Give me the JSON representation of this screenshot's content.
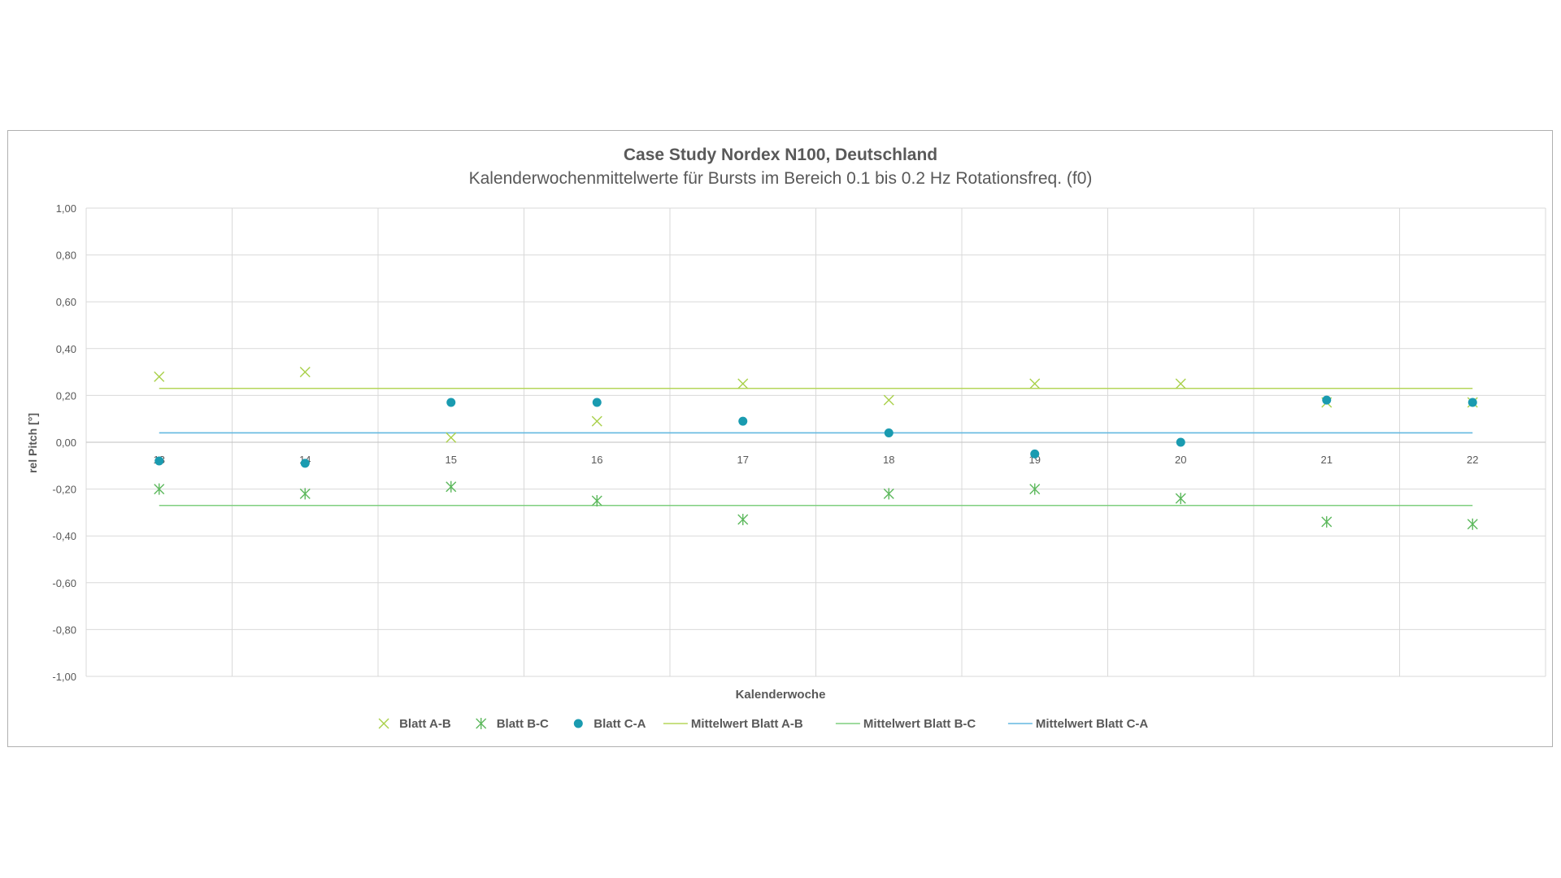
{
  "chart_data": {
    "type": "scatter",
    "title": "Case Study Nordex N100, Deutschland",
    "subtitle": "Kalenderwochenmittelwerte für Bursts im Bereich 0.1 bis 0.2 Hz Rotationsfreq. (f0)",
    "xlabel": "Kalenderwoche",
    "ylabel": "rel Pitch [°]",
    "x": [
      13,
      14,
      15,
      16,
      17,
      18,
      19,
      20,
      21,
      22
    ],
    "x_tick_labels": [
      "13",
      "14",
      "15",
      "16",
      "17",
      "18",
      "19",
      "20",
      "21",
      "22"
    ],
    "ylim": [
      -1.0,
      1.0
    ],
    "y_tick_labels": [
      "1,00",
      "0,80",
      "0,60",
      "0,40",
      "0,20",
      "0,00",
      "-0,20",
      "-0,40",
      "-0,60",
      "-0,80",
      "-1,00"
    ],
    "grid": true,
    "legend_position": "bottom",
    "series": [
      {
        "name": "Blatt A-B",
        "marker": "x",
        "color": "#a9d04a",
        "values": [
          0.28,
          0.3,
          0.02,
          0.09,
          0.25,
          0.18,
          0.25,
          0.25,
          0.17,
          0.17
        ]
      },
      {
        "name": "Blatt B-C",
        "marker": "star",
        "color": "#5cb85c",
        "values": [
          -0.2,
          -0.22,
          -0.19,
          -0.25,
          -0.33,
          -0.22,
          -0.2,
          -0.24,
          -0.34,
          -0.35
        ]
      },
      {
        "name": "Blatt C-A",
        "marker": "circle",
        "color": "#1a9bb0",
        "values": [
          -0.08,
          -0.09,
          0.17,
          0.17,
          0.09,
          0.04,
          -0.05,
          0.0,
          0.18,
          0.17
        ]
      },
      {
        "name": "Mittelwert Blatt A-B",
        "marker": "line",
        "color": "#b5d65a",
        "values": [
          0.23,
          0.23,
          0.23,
          0.23,
          0.23,
          0.23,
          0.23,
          0.23,
          0.23,
          0.23
        ]
      },
      {
        "name": "Mittelwert Blatt B-C",
        "marker": "line",
        "color": "#7fcf7f",
        "values": [
          -0.27,
          -0.27,
          -0.27,
          -0.27,
          -0.27,
          -0.27,
          -0.27,
          -0.27,
          -0.27,
          -0.27
        ]
      },
      {
        "name": "Mittelwert Blatt C-A",
        "marker": "line",
        "color": "#63b8e0",
        "values": [
          0.04,
          0.04,
          0.04,
          0.04,
          0.04,
          0.04,
          0.04,
          0.04,
          0.04,
          0.04
        ]
      }
    ]
  }
}
